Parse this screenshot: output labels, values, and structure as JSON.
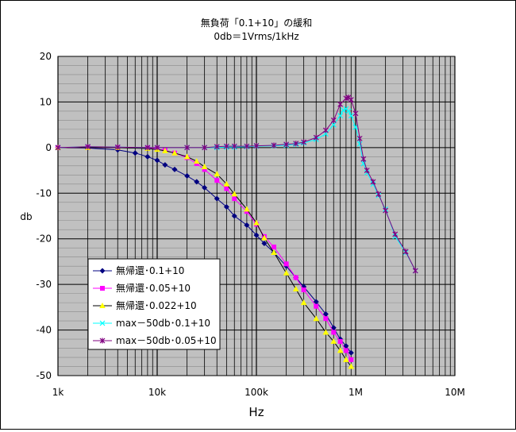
{
  "chart_data": {
    "type": "line",
    "title": "無負荷「0.1+10」の緩和",
    "subtitle": "0db＝1Vrms/1kHz",
    "xlabel": "Hz",
    "ylabel": "db",
    "x_scale": "log",
    "xlim": [
      1000,
      10000000
    ],
    "ylim": [
      -50,
      20
    ],
    "x_tick_values": [
      1000,
      10000,
      100000,
      1000000,
      10000000
    ],
    "x_tick_labels": [
      "1k",
      "10k",
      "100k",
      "1M",
      "10M"
    ],
    "y_tick_values": [
      20,
      10,
      0,
      -10,
      -20,
      -30,
      -40,
      -50
    ],
    "y_tick_labels": [
      "20",
      "10",
      "0",
      "-10",
      "-20",
      "-30",
      "-40",
      "-50"
    ],
    "grid": true,
    "plot_background": "#c0c0c0",
    "legend_position": "lower-left",
    "series": [
      {
        "name": "無帰還･0.1+10",
        "color": "#000080",
        "marker": "diamond",
        "points": [
          [
            1000,
            0
          ],
          [
            2000,
            -0.1
          ],
          [
            4000,
            -0.5
          ],
          [
            6000,
            -1.2
          ],
          [
            8000,
            -2.0
          ],
          [
            10000,
            -2.8
          ],
          [
            12000,
            -3.8
          ],
          [
            15000,
            -4.8
          ],
          [
            20000,
            -6.2
          ],
          [
            25000,
            -7.5
          ],
          [
            30000,
            -8.8
          ],
          [
            40000,
            -11.2
          ],
          [
            50000,
            -13.0
          ],
          [
            60000,
            -15.0
          ],
          [
            80000,
            -17.0
          ],
          [
            100000,
            -19.2
          ],
          [
            120000,
            -21.0
          ],
          [
            150000,
            -23.0
          ],
          [
            200000,
            -26.0
          ],
          [
            250000,
            -28.5
          ],
          [
            300000,
            -30.5
          ],
          [
            400000,
            -33.8
          ],
          [
            500000,
            -36.5
          ],
          [
            600000,
            -39.5
          ],
          [
            700000,
            -42.0
          ],
          [
            800000,
            -43.5
          ],
          [
            900000,
            -45.0
          ]
        ]
      },
      {
        "name": "無帰還･0.05+10",
        "color": "#ff00ff",
        "marker": "square",
        "points": [
          [
            1000,
            0
          ],
          [
            2000,
            0
          ],
          [
            4000,
            0
          ],
          [
            8000,
            -0.1
          ],
          [
            10000,
            -0.3
          ],
          [
            12000,
            -0.6
          ],
          [
            15000,
            -1.2
          ],
          [
            20000,
            -2.2
          ],
          [
            25000,
            -3.5
          ],
          [
            30000,
            -4.8
          ],
          [
            40000,
            -7.2
          ],
          [
            50000,
            -9.0
          ],
          [
            60000,
            -11.2
          ],
          [
            80000,
            -14.0
          ],
          [
            100000,
            -16.8
          ],
          [
            120000,
            -19.5
          ],
          [
            150000,
            -21.8
          ],
          [
            200000,
            -25.5
          ],
          [
            250000,
            -28.5
          ],
          [
            300000,
            -31.2
          ],
          [
            400000,
            -34.8
          ],
          [
            500000,
            -37.5
          ],
          [
            600000,
            -40.5
          ],
          [
            700000,
            -42.5
          ],
          [
            800000,
            -44.5
          ],
          [
            900000,
            -46.5
          ]
        ]
      },
      {
        "name": "無帰還･0.022+10",
        "color": "#ffff00",
        "marker": "triangle",
        "points": [
          [
            1000,
            0
          ],
          [
            2000,
            0
          ],
          [
            4000,
            0
          ],
          [
            8000,
            -0.2
          ],
          [
            10000,
            -0.4
          ],
          [
            12000,
            -0.7
          ],
          [
            15000,
            -1.2
          ],
          [
            20000,
            -2.0
          ],
          [
            25000,
            -3.0
          ],
          [
            30000,
            -4.2
          ],
          [
            40000,
            -5.8
          ],
          [
            50000,
            -8.0
          ],
          [
            60000,
            -10.2
          ],
          [
            80000,
            -13.5
          ],
          [
            100000,
            -16.5
          ],
          [
            120000,
            -19.8
          ],
          [
            150000,
            -23.0
          ],
          [
            200000,
            -27.5
          ],
          [
            250000,
            -31.0
          ],
          [
            300000,
            -34.0
          ],
          [
            400000,
            -37.5
          ],
          [
            500000,
            -40.5
          ],
          [
            600000,
            -42.5
          ],
          [
            700000,
            -44.5
          ],
          [
            800000,
            -46.5
          ],
          [
            900000,
            -48.0
          ]
        ]
      },
      {
        "name": "max－50db･0.1+10",
        "color": "#00ffff",
        "marker": "x",
        "points": [
          [
            1000,
            0
          ],
          [
            2000,
            0.2
          ],
          [
            4000,
            0.1
          ],
          [
            8000,
            0
          ],
          [
            10000,
            0
          ],
          [
            20000,
            0
          ],
          [
            30000,
            0
          ],
          [
            40000,
            0
          ],
          [
            50000,
            0.1
          ],
          [
            60000,
            0.1
          ],
          [
            80000,
            0.2
          ],
          [
            100000,
            0.3
          ],
          [
            150000,
            0.4
          ],
          [
            200000,
            0.5
          ],
          [
            250000,
            0.7
          ],
          [
            300000,
            1.0
          ],
          [
            400000,
            1.8
          ],
          [
            500000,
            3.0
          ],
          [
            600000,
            5.0
          ],
          [
            700000,
            7.0
          ],
          [
            750000,
            8.2
          ],
          [
            800000,
            8.5
          ],
          [
            850000,
            8.0
          ],
          [
            900000,
            7.0
          ],
          [
            1000000,
            4.5
          ],
          [
            1100000,
            0.8
          ],
          [
            1200000,
            -3.5
          ],
          [
            1300000,
            -5.5
          ],
          [
            1500000,
            -8.0
          ],
          [
            1700000,
            -10.5
          ],
          [
            2000000,
            -13.5
          ],
          [
            2500000,
            -19.5
          ],
          [
            3200000,
            -23.0
          ],
          [
            4000000,
            -27.0
          ]
        ]
      },
      {
        "name": "max－50db･0.05+10",
        "color": "#800080",
        "marker": "star",
        "points": [
          [
            1000,
            0
          ],
          [
            2000,
            0.2
          ],
          [
            4000,
            0.1
          ],
          [
            8000,
            0
          ],
          [
            10000,
            0
          ],
          [
            20000,
            0
          ],
          [
            30000,
            0
          ],
          [
            40000,
            0.2
          ],
          [
            50000,
            0.3
          ],
          [
            60000,
            0.3
          ],
          [
            80000,
            0.3
          ],
          [
            100000,
            0.4
          ],
          [
            150000,
            0.5
          ],
          [
            200000,
            0.7
          ],
          [
            250000,
            0.9
          ],
          [
            300000,
            1.2
          ],
          [
            400000,
            2.2
          ],
          [
            500000,
            3.8
          ],
          [
            600000,
            6.0
          ],
          [
            700000,
            9.5
          ],
          [
            800000,
            10.8
          ],
          [
            850000,
            11.0
          ],
          [
            900000,
            10.5
          ],
          [
            1000000,
            7.5
          ],
          [
            1100000,
            2.0
          ],
          [
            1200000,
            -2.5
          ],
          [
            1300000,
            -5.0
          ],
          [
            1500000,
            -7.5
          ],
          [
            1700000,
            -10.2
          ],
          [
            2000000,
            -13.8
          ],
          [
            2500000,
            -19.0
          ],
          [
            3200000,
            -22.8
          ],
          [
            4000000,
            -27.0
          ]
        ]
      }
    ]
  }
}
